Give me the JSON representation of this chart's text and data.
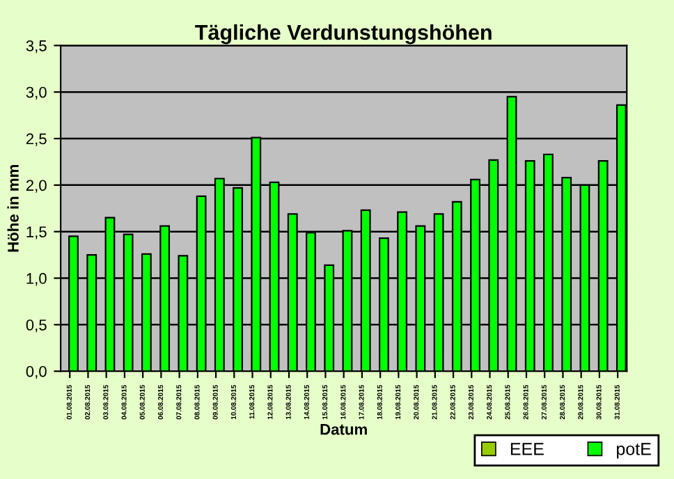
{
  "chart_data": {
    "type": "bar",
    "title": "Tägliche Verdunstungshöhen",
    "xlabel": "Datum",
    "ylabel": "Höhe in mm",
    "categories": [
      "01.08.2015",
      "02.08.2015",
      "03.08.2015",
      "04.08.2015",
      "05.08.2015",
      "06.08.2015",
      "07.08.2015",
      "08.08.2015",
      "09.08.2015",
      "10.08.2015",
      "11.08.2015",
      "12.08.2015",
      "13.08.2015",
      "14.08.2015",
      "15.08.2015",
      "16.08.2015",
      "17.08.2015",
      "18.08.2015",
      "19.08.2015",
      "20.08.2015",
      "21.08.2015",
      "22.08.2015",
      "23.08.2015",
      "24.08.2015",
      "25.08.2015",
      "26.08.2015",
      "27.08.2015",
      "28.08.2015",
      "29.08.2015",
      "30.08.2015",
      "31.08.2015"
    ],
    "series": [
      {
        "name": "EEE",
        "color": "#99cc00",
        "values": [
          null,
          null,
          null,
          null,
          null,
          null,
          null,
          null,
          null,
          null,
          null,
          null,
          null,
          null,
          null,
          null,
          null,
          null,
          null,
          null,
          null,
          null,
          null,
          null,
          null,
          null,
          null,
          null,
          null,
          null,
          null
        ]
      },
      {
        "name": "potE",
        "color": "#00ff00",
        "values": [
          1.45,
          1.25,
          1.65,
          1.47,
          1.26,
          1.56,
          1.24,
          1.88,
          2.07,
          1.97,
          2.51,
          2.03,
          1.69,
          1.49,
          1.14,
          1.51,
          1.73,
          1.43,
          1.71,
          1.56,
          1.69,
          1.82,
          2.06,
          2.27,
          2.95,
          2.26,
          2.33,
          2.08,
          2.0,
          2.26,
          2.86
        ]
      }
    ],
    "ylim": [
      0,
      3.5
    ],
    "yticks": [
      {
        "value": 0,
        "label": "0,0"
      },
      {
        "value": 0.5,
        "label": "0,5"
      },
      {
        "value": 1,
        "label": "1,0"
      },
      {
        "value": 1.5,
        "label": "1,5"
      },
      {
        "value": 2,
        "label": "2,0"
      },
      {
        "value": 2.5,
        "label": "2,5"
      },
      {
        "value": 3,
        "label": "3,0"
      },
      {
        "value": 3.5,
        "label": "3,5"
      }
    ],
    "grid": "y",
    "legend": "bottom right"
  }
}
